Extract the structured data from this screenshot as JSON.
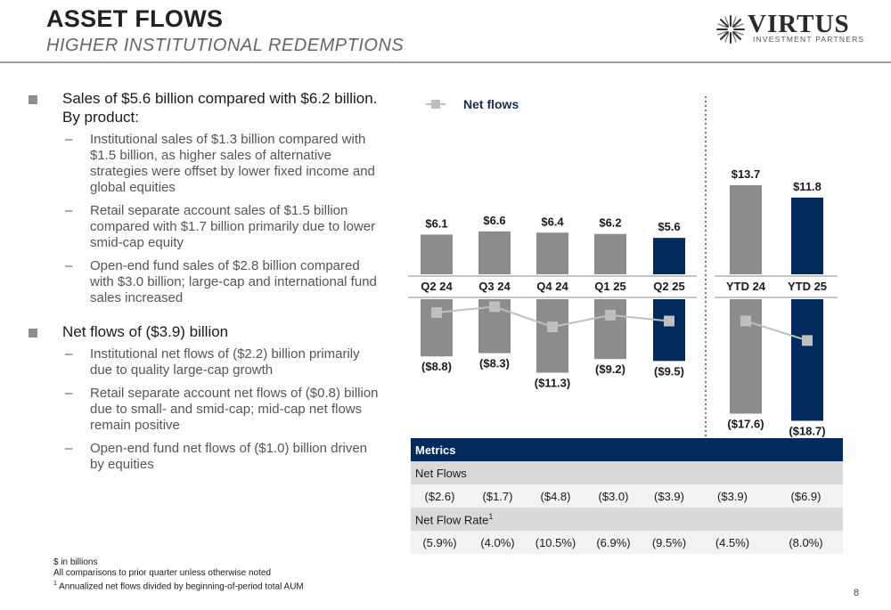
{
  "header": {
    "title": "ASSET FLOWS",
    "subtitle": "HIGHER INSTITUTIONAL REDEMPTIONS"
  },
  "logo": {
    "word": "VIRTUS",
    "sub": "INVESTMENT PARTNERS"
  },
  "bullets": [
    {
      "text": "Sales of $5.6 billion compared with $6.2 billion. By product:",
      "sub": [
        "Institutional sales of $1.3 billion compared with $1.5 billion, as higher sales of alternative strategies were offset by lower fixed income and global equities",
        "Retail separate account sales of $1.5 billion compared with $1.7 billion primarily due to lower smid-cap equity",
        "Open-end fund sales of $2.8 billion compared with $3.0 billion; large-cap and international fund sales increased"
      ]
    },
    {
      "text": "Net flows of ($3.9) billion",
      "sub": [
        "Institutional net flows of ($2.2) billion primarily due to quality large-cap growth",
        "Retail separate account net flows of ($0.8) billion due to small- and smid-cap; mid-cap net flows remain positive",
        "Open-end fund net flows of ($1.0) billion driven by equities"
      ]
    }
  ],
  "chart_data": {
    "type": "bar",
    "categories": [
      "Q2 24",
      "Q3 24",
      "Q4 24",
      "Q1 25",
      "Q2 25",
      "YTD 24",
      "YTD 25"
    ],
    "series": [
      {
        "values": [
          6.1,
          6.6,
          6.4,
          6.2,
          5.6,
          13.7,
          11.8
        ],
        "labels": [
          "$6.1",
          "$6.6",
          "$6.4",
          "$6.2",
          "$5.6",
          "$13.7",
          "$11.8"
        ]
      },
      {
        "values": [
          -8.8,
          -8.3,
          -11.3,
          -9.2,
          -9.5,
          -17.6,
          -18.7
        ],
        "labels": [
          "($8.8)",
          "($8.3)",
          "($11.3)",
          "($9.2)",
          "($9.5)",
          "($17.6)",
          "($18.7)"
        ]
      },
      {
        "name": "Net flows",
        "type": "line",
        "values": [
          -2.6,
          -1.7,
          -4.8,
          -3.0,
          -3.9,
          -3.9,
          -6.9
        ]
      }
    ],
    "legend": "top-left",
    "highlight_color": "#002b5c",
    "bar_color": "#8c8c8c",
    "line_color": "#bfbfbf"
  },
  "metrics": {
    "header": "Metrics",
    "net_flows_label": "Net Flows",
    "net_flows": [
      "($2.6)",
      "($1.7)",
      "($4.8)",
      "($3.0)",
      "($3.9)",
      "($3.9)",
      "($6.9)"
    ],
    "net_flow_rate_label": "Net Flow Rate",
    "net_flow_rate_sup": "1",
    "net_flow_rate": [
      "(5.9%)",
      "(4.0%)",
      "(10.5%)",
      "(6.9%)",
      "(9.5%)",
      "(4.5%)",
      "(8.0%)"
    ]
  },
  "footnotes": {
    "line1": "$ in billions",
    "line2": "All comparisons to prior quarter unless otherwise noted",
    "line3_sup": "1",
    "line3": " Annualized net flows divided by beginning-of-period total AUM"
  },
  "page_number": "8"
}
